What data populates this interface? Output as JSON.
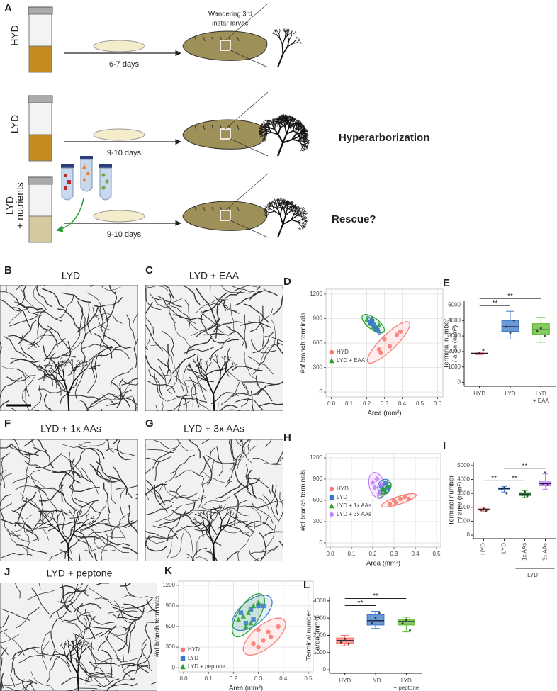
{
  "panel_a": {
    "label": "A",
    "stage_label": [
      "Wandering 3rd",
      "instar larvae"
    ],
    "rows": [
      {
        "label": [
          "HYD"
        ],
        "duration": "6-7 days"
      },
      {
        "label": [
          "LYD"
        ],
        "duration": "9-10 days",
        "outcome": "Hyperarborization"
      },
      {
        "label": [
          "LYD",
          "+ nutrients"
        ],
        "duration": "9-10 days",
        "outcome": "Rescue?"
      }
    ]
  },
  "images": [
    {
      "label": "B",
      "title": "LYD"
    },
    {
      "label": "C",
      "title": "LYD + EAA"
    },
    {
      "label": "F",
      "title": "LYD + 1x AAs"
    },
    {
      "label": "G",
      "title": "LYD + 3x AAs"
    },
    {
      "label": "J",
      "title": "LYD + peptone"
    }
  ],
  "chart_data": [
    {
      "type": "scatter",
      "panel": "D",
      "x_label": "Area (mm²)",
      "y_label": "#of branch terminals",
      "grid": true,
      "xlim": [
        -0.03,
        0.63
      ],
      "ylim": [
        -60,
        1260
      ],
      "xticks": [
        {
          "value": 0,
          "label": "0.0"
        },
        0.1,
        0.2,
        0.3,
        0.4,
        0.5,
        0.6
      ],
      "yticks": [
        0,
        300,
        600,
        900,
        1200
      ],
      "series": [
        {
          "name": "HYD",
          "color": "#f8766d",
          "marker": "circle",
          "x": [
            0.27,
            0.3,
            0.37,
            0.39,
            0.33,
            0.28
          ],
          "y": [
            520,
            650,
            700,
            740,
            560,
            480
          ]
        },
        {
          "name": "LYD + EAA",
          "color": "#1fa12a",
          "marker": "triangle",
          "x": [
            0.2,
            0.22,
            0.24,
            0.23,
            0.26,
            0.27
          ],
          "y": [
            880,
            840,
            800,
            900,
            780,
            820
          ]
        },
        {
          "name": "LYD",
          "color": "#3a78c9",
          "marker": "square",
          "legend": false,
          "x": [
            0.22,
            0.24,
            0.25,
            0.23,
            0.26
          ],
          "y": [
            850,
            820,
            780,
            870,
            760
          ]
        }
      ]
    },
    {
      "type": "box",
      "panel": "E",
      "y_label": [
        "Terminal number",
        "/ area (mm²)"
      ],
      "ylim": [
        -250,
        5250
      ],
      "yticks": [
        0,
        1000,
        2000,
        3000,
        4000,
        5000
      ],
      "categories": [
        [
          "HYD"
        ],
        [
          "LYD"
        ],
        [
          "LYD",
          "+ EAA"
        ]
      ],
      "boxes": [
        {
          "color": "#f8766d",
          "min": 1800,
          "q1": 1860,
          "median": 1880,
          "q3": 1900,
          "max": 1960,
          "points": [
            1850,
            1900,
            2100
          ]
        },
        {
          "color": "#3a78c9",
          "min": 2800,
          "q1": 3300,
          "median": 3600,
          "q3": 4000,
          "max": 4600,
          "points": [
            3600,
            3200,
            4000
          ]
        },
        {
          "color": "#5cb82e",
          "min": 2600,
          "q1": 3100,
          "median": 3400,
          "q3": 3800,
          "max": 4200,
          "points": [
            3300,
            3500,
            3000
          ]
        }
      ],
      "significance": [
        {
          "label": "**",
          "between": [
            0,
            1
          ]
        },
        {
          "label": "**",
          "between": [
            0,
            2
          ]
        }
      ]
    },
    {
      "type": "scatter",
      "panel": "H",
      "x_label": "Area (mm²)",
      "y_label": "#of branch terminals",
      "grid": true,
      "xlim": [
        -0.02,
        0.52
      ],
      "ylim": [
        -60,
        1260
      ],
      "xticks": [
        {
          "value": 0,
          "label": "0.0"
        },
        0.1,
        0.2,
        0.3,
        0.4,
        0.5
      ],
      "yticks": [
        0,
        300,
        600,
        900,
        1200
      ],
      "series": [
        {
          "name": "HYD",
          "color": "#f8766d",
          "marker": "circle",
          "x": [
            0.28,
            0.3,
            0.33,
            0.35,
            0.31,
            0.37
          ],
          "y": [
            550,
            600,
            620,
            650,
            560,
            620
          ]
        },
        {
          "name": "LYD",
          "color": "#3a78c9",
          "marker": "square",
          "x": [
            0.24,
            0.25,
            0.26,
            0.27
          ],
          "y": [
            800,
            750,
            850,
            780
          ]
        },
        {
          "name": "LYD + 1x AAs",
          "color": "#1fa12a",
          "marker": "triangle",
          "x": [
            0.24,
            0.25,
            0.26,
            0.27
          ],
          "y": [
            700,
            760,
            720,
            800
          ]
        },
        {
          "name": "LYD + 3x AAs",
          "color": "#c77cff",
          "marker": "diamond",
          "x": [
            0.2,
            0.21,
            0.22,
            0.23,
            0.24
          ],
          "y": [
            850,
            780,
            900,
            700,
            820
          ]
        }
      ]
    },
    {
      "type": "box",
      "panel": "I",
      "y_label": [
        "Terminal number",
        "/ area (mm²)"
      ],
      "ylim": [
        -250,
        5250
      ],
      "yticks": [
        0,
        1000,
        2000,
        3000,
        4000,
        5000
      ],
      "rotate_labels": true,
      "categories": [
        [
          "HYD"
        ],
        [
          "LYD"
        ],
        [
          "1x AAs"
        ],
        [
          "3x AAs"
        ]
      ],
      "group": {
        "label": "LYD +",
        "categories": [
          2,
          3
        ]
      },
      "boxes": [
        {
          "color": "#f8766d",
          "min": 1700,
          "q1": 1800,
          "median": 1850,
          "q3": 1900,
          "max": 2000,
          "points": [
            1800,
            1900,
            1750
          ]
        },
        {
          "color": "#3a78c9",
          "min": 3100,
          "q1": 3250,
          "median": 3350,
          "q3": 3400,
          "max": 3500,
          "points": [
            3300,
            3400,
            3000
          ]
        },
        {
          "color": "#1fa12a",
          "min": 2700,
          "q1": 2850,
          "median": 2950,
          "q3": 3050,
          "max": 3200,
          "points": [
            2900,
            3100,
            2800
          ]
        },
        {
          "color": "#c77cff",
          "min": 3300,
          "q1": 3550,
          "median": 3700,
          "q3": 3900,
          "max": 4400,
          "points": [
            3700,
            4500,
            3600
          ]
        }
      ],
      "significance": [
        {
          "label": "**",
          "between": [
            0,
            1
          ]
        },
        {
          "label": "**",
          "between": [
            1,
            2
          ]
        },
        {
          "label": "**",
          "between": [
            1,
            3
          ]
        }
      ]
    },
    {
      "type": "scatter",
      "panel": "K",
      "x_label": "Area (mm²)",
      "y_label": "#of branch terminals",
      "grid": true,
      "xlim": [
        -0.02,
        0.52
      ],
      "ylim": [
        -60,
        1260
      ],
      "xticks": [
        {
          "value": 0,
          "label": "0.0"
        },
        0.1,
        0.2,
        0.3,
        0.4,
        0.5
      ],
      "yticks": [
        0,
        300,
        600,
        900,
        1200
      ],
      "series": [
        {
          "name": "HYD",
          "color": "#f8766d",
          "marker": "circle",
          "x": [
            0.3,
            0.32,
            0.35,
            0.38,
            0.3,
            0.28,
            0.34
          ],
          "y": [
            300,
            400,
            450,
            600,
            550,
            350,
            520
          ]
        },
        {
          "name": "LYD",
          "color": "#3a78c9",
          "marker": "square",
          "x": [
            0.23,
            0.27,
            0.3,
            0.25,
            0.28,
            0.32
          ],
          "y": [
            800,
            850,
            900,
            650,
            700,
            900
          ]
        },
        {
          "name": "LYD + peptone",
          "color": "#1fa12a",
          "marker": "triangle",
          "x": [
            0.22,
            0.24,
            0.26,
            0.28,
            0.3,
            0.25,
            0.27
          ],
          "y": [
            700,
            750,
            800,
            900,
            950,
            600,
            650
          ]
        }
      ]
    },
    {
      "type": "box",
      "panel": "L",
      "y_label": [
        "Terminal number",
        "/ area (mm²)"
      ],
      "ylim": [
        -200,
        4200
      ],
      "yticks": [
        0,
        1000,
        2000,
        3000,
        4000
      ],
      "categories": [
        [
          "HYD"
        ],
        [
          "LYD"
        ],
        [
          "LYD",
          "+ peptone"
        ]
      ],
      "boxes": [
        {
          "color": "#f8766d",
          "min": 1400,
          "q1": 1550,
          "median": 1700,
          "q3": 1850,
          "max": 2000,
          "points": [
            1600,
            1800,
            1500
          ]
        },
        {
          "color": "#3a78c9",
          "min": 2400,
          "q1": 2600,
          "median": 2850,
          "q3": 3200,
          "max": 3400,
          "points": [
            2700,
            3000,
            3300
          ]
        },
        {
          "color": "#5cb82e",
          "min": 2200,
          "q1": 2600,
          "median": 2800,
          "q3": 2900,
          "max": 3050,
          "points": [
            2700,
            2900,
            2300
          ]
        }
      ],
      "significance": [
        {
          "label": "**",
          "between": [
            0,
            1
          ]
        },
        {
          "label": "**",
          "between": [
            0,
            2
          ]
        }
      ]
    }
  ]
}
